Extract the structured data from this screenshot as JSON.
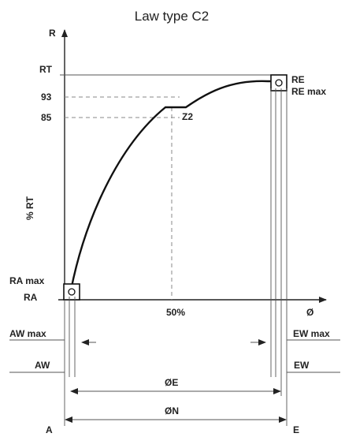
{
  "diagram": {
    "title": "Law type C2",
    "axis": {
      "y_label": "R",
      "y_side_label": "% RT",
      "x_label": "Ø"
    },
    "ticks": {
      "rt": "RT",
      "r93": "93",
      "r85": "85",
      "x50": "50%"
    },
    "points": {
      "z2": "Z2",
      "re": "RE",
      "re_max": "RE max",
      "ra_max": "RA max",
      "ra": "RA"
    },
    "dimensions": {
      "aw_max": "AW max",
      "ew_max": "EW max",
      "aw": "AW",
      "ew": "EW",
      "oe": "ØE",
      "on": "ØN",
      "a": "A",
      "e": "E"
    }
  }
}
